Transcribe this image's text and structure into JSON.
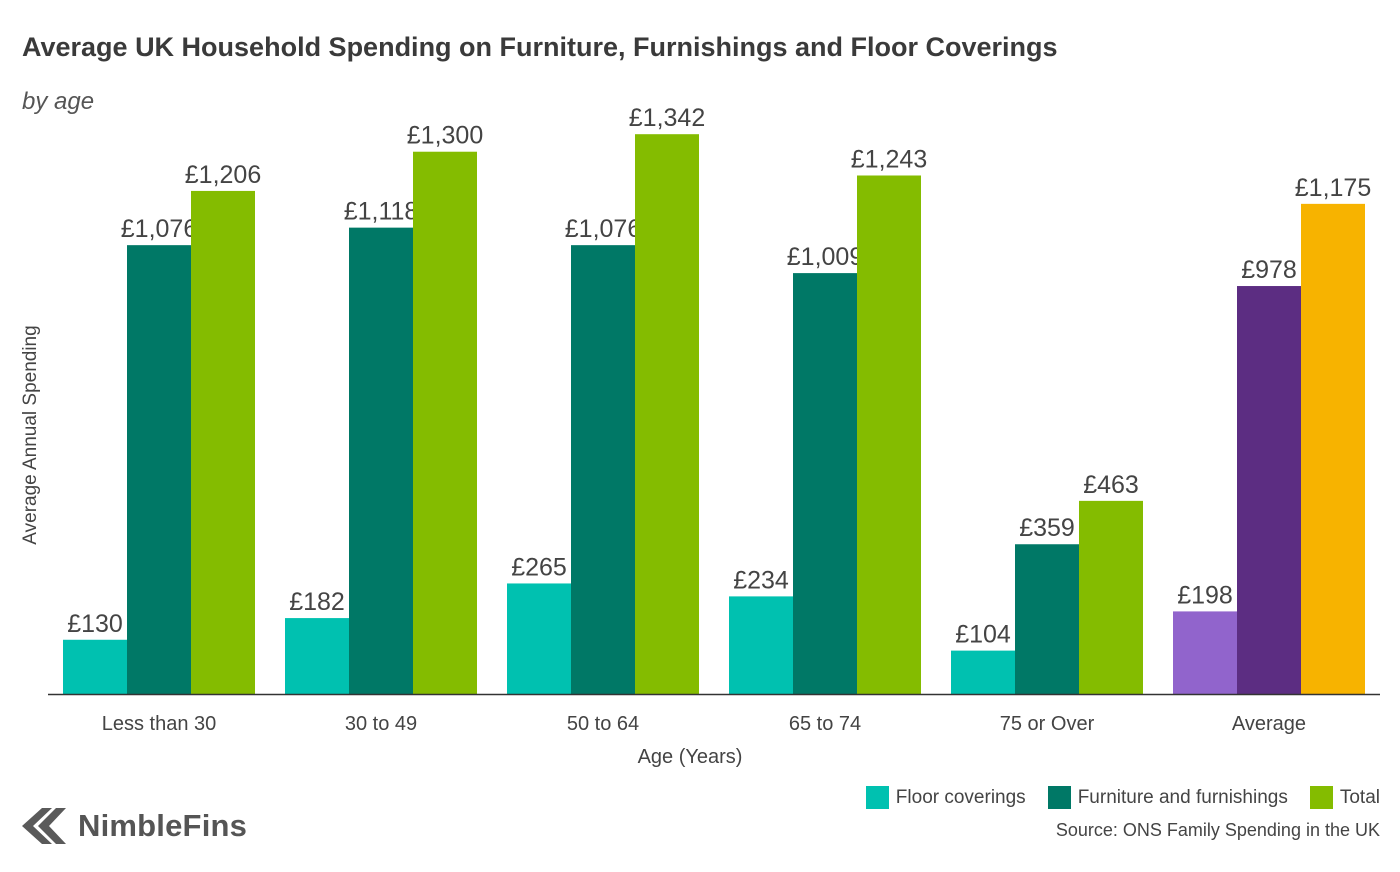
{
  "chart_data": {
    "type": "bar",
    "title": "Average UK Household Spending on Furniture, Furnishings and Floor Coverings",
    "subtitle": "by age",
    "xlabel": "Age (Years)",
    "ylabel": "Average Annual Spending",
    "ylim": [
      0,
      1400
    ],
    "grid": false,
    "legend_position": "bottom-right",
    "categories": [
      "Less than 30",
      "30 to 49",
      "50 to 64",
      "65 to 74",
      "75 or Over",
      "Average"
    ],
    "series": [
      {
        "name": "Floor coverings",
        "values": [
          130,
          182,
          265,
          234,
          104,
          198
        ],
        "labels": [
          "£130",
          "£182",
          "£265",
          "£234",
          "£104",
          "£198"
        ]
      },
      {
        "name": "Furniture and furnishings",
        "values": [
          1076,
          1118,
          1076,
          1009,
          359,
          978
        ],
        "labels": [
          "£1,076",
          "£1,118",
          "£1,076",
          "£1,009",
          "£359",
          "£978"
        ]
      },
      {
        "name": "Total",
        "values": [
          1206,
          1300,
          1342,
          1243,
          463,
          1175
        ],
        "labels": [
          "£1,206",
          "£1,300",
          "£1,342",
          "£1,243",
          "£463",
          "£1,175"
        ]
      }
    ],
    "colors": {
      "floor": "#00c1b0",
      "furniture": "#007866",
      "total": "#84bc00",
      "average_floor": "#9164cc",
      "average_furniture": "#5c2d82",
      "average_total": "#f7b300"
    }
  },
  "source": "Source: ONS Family Spending in the UK",
  "brand": {
    "name": "NimbleFins",
    "icon": "arrow-logo-icon"
  }
}
